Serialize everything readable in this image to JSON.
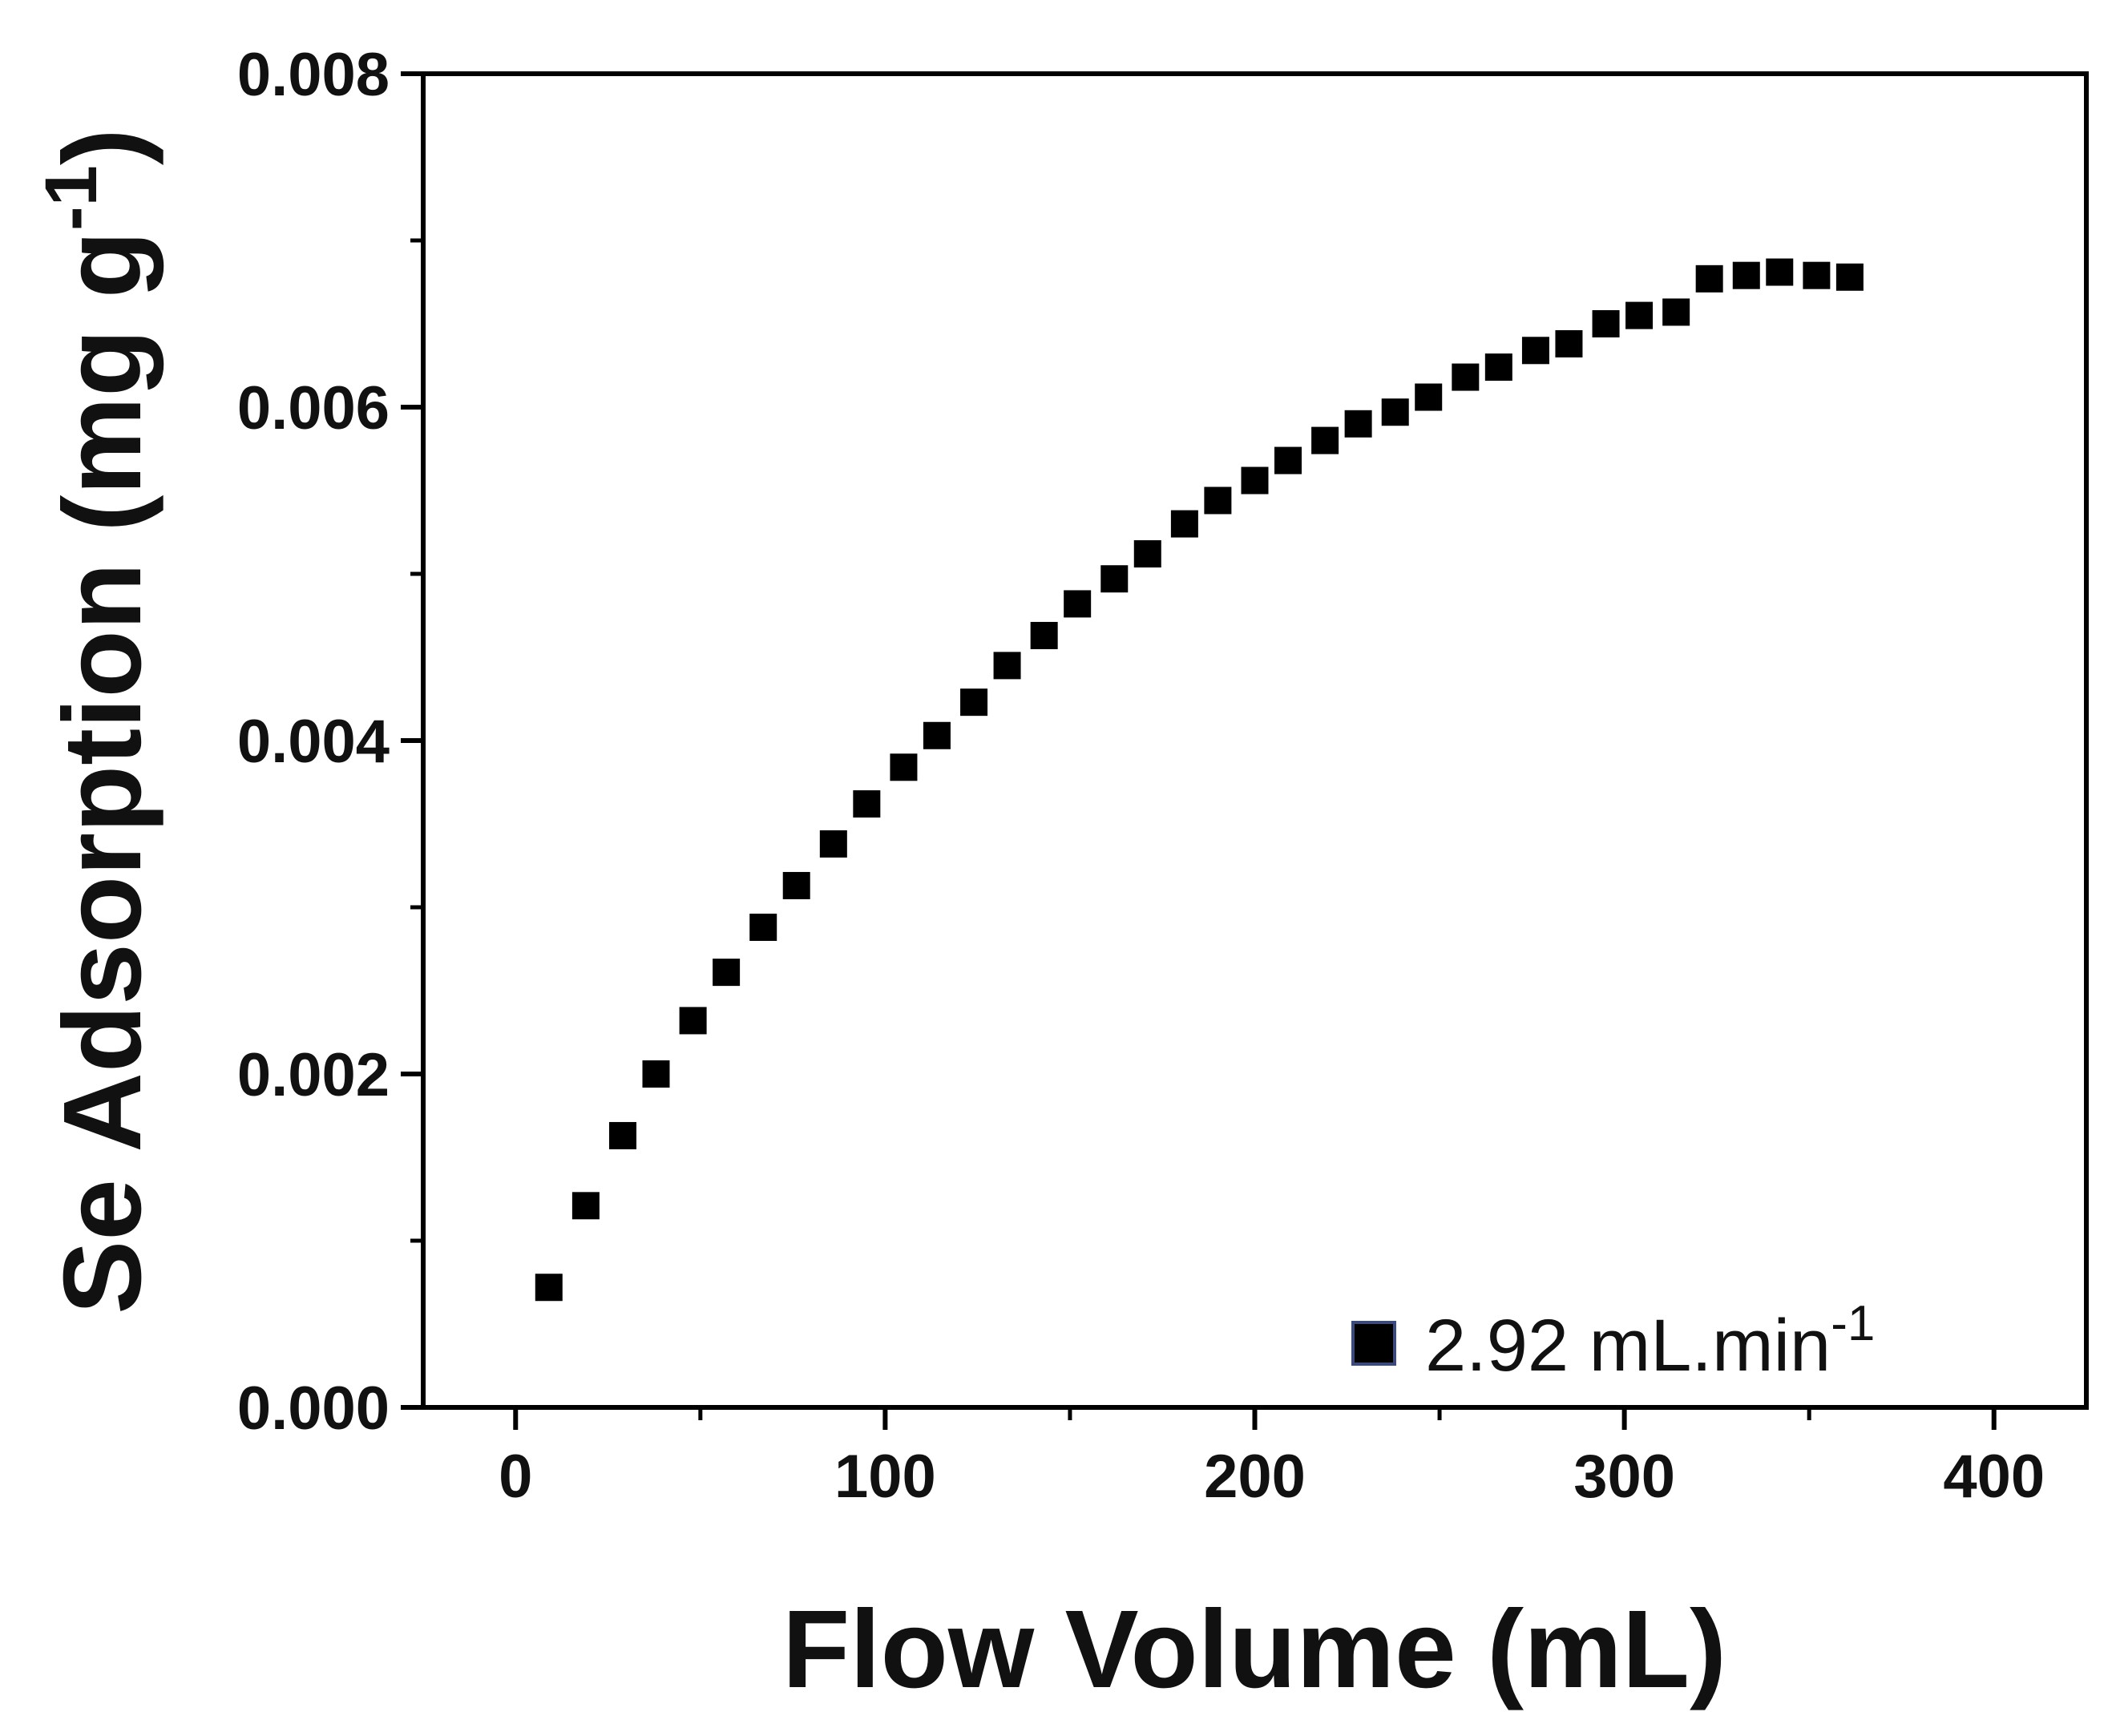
{
  "chart_data": {
    "type": "scatter",
    "xlabel": "Flow Volume (mL)",
    "ylabel_main": "Se Adsorption (mg g",
    "ylabel_sup": "-1",
    "ylabel_close": ")",
    "xlim": [
      -25,
      425
    ],
    "ylim": [
      0,
      0.008
    ],
    "x_ticks": [
      0,
      100,
      200,
      300,
      400
    ],
    "x_tick_labels": [
      "0",
      "100",
      "200",
      "300",
      "400"
    ],
    "y_ticks": [
      0,
      0.002,
      0.004,
      0.006,
      0.008
    ],
    "y_tick_labels": [
      "0.000",
      "0.002",
      "0.004",
      "0.006",
      "0.008"
    ],
    "grid": false,
    "legend_position": "bottom-right",
    "series": [
      {
        "legend_main": "2.92 mL.min",
        "legend_sup": "-1",
        "marker": "square",
        "color": "#000000",
        "legend_marker_border": "#3b4a7a",
        "points": [
          {
            "x": 9,
            "y": 0.00072
          },
          {
            "x": 19,
            "y": 0.00121
          },
          {
            "x": 29,
            "y": 0.00163
          },
          {
            "x": 38,
            "y": 0.002
          },
          {
            "x": 48,
            "y": 0.00232
          },
          {
            "x": 57,
            "y": 0.00261
          },
          {
            "x": 67,
            "y": 0.00288
          },
          {
            "x": 76,
            "y": 0.00313
          },
          {
            "x": 86,
            "y": 0.00338
          },
          {
            "x": 95,
            "y": 0.00362
          },
          {
            "x": 105,
            "y": 0.00384
          },
          {
            "x": 114,
            "y": 0.00403
          },
          {
            "x": 124,
            "y": 0.00423
          },
          {
            "x": 133,
            "y": 0.00445
          },
          {
            "x": 143,
            "y": 0.00463
          },
          {
            "x": 152,
            "y": 0.00482
          },
          {
            "x": 162,
            "y": 0.00497
          },
          {
            "x": 171,
            "y": 0.00512
          },
          {
            "x": 181,
            "y": 0.0053
          },
          {
            "x": 190,
            "y": 0.00544
          },
          {
            "x": 200,
            "y": 0.00556
          },
          {
            "x": 209,
            "y": 0.00568
          },
          {
            "x": 219,
            "y": 0.0058
          },
          {
            "x": 228,
            "y": 0.0059
          },
          {
            "x": 238,
            "y": 0.00597
          },
          {
            "x": 247,
            "y": 0.00606
          },
          {
            "x": 257,
            "y": 0.00618
          },
          {
            "x": 266,
            "y": 0.00624
          },
          {
            "x": 276,
            "y": 0.00634
          },
          {
            "x": 285,
            "y": 0.00638
          },
          {
            "x": 295,
            "y": 0.0065
          },
          {
            "x": 304,
            "y": 0.00655
          },
          {
            "x": 314,
            "y": 0.00657
          },
          {
            "x": 323,
            "y": 0.00677
          },
          {
            "x": 333,
            "y": 0.00679
          },
          {
            "x": 342,
            "y": 0.00681
          },
          {
            "x": 352,
            "y": 0.00679
          },
          {
            "x": 361,
            "y": 0.00678
          }
        ]
      }
    ]
  }
}
